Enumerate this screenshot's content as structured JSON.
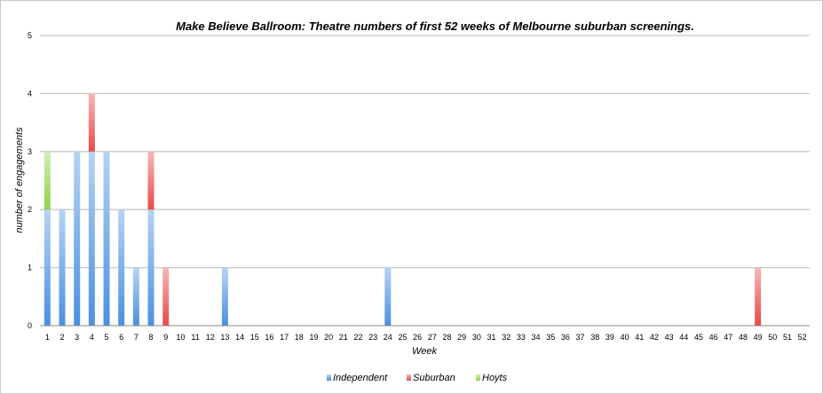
{
  "chart_data": {
    "type": "bar",
    "stacked": true,
    "title": "Make Believe Ballroom: Theatre numbers of first 52 weeks of Melbourne suburban screenings.",
    "xlabel": "Week",
    "ylabel": "number of engagements",
    "ylim": [
      0,
      5
    ],
    "yticks": [
      0,
      1,
      2,
      3,
      4,
      5
    ],
    "grid": true,
    "legend_position": "bottom",
    "categories": [
      "1",
      "2",
      "3",
      "4",
      "5",
      "6",
      "7",
      "8",
      "9",
      "10",
      "11",
      "12",
      "13",
      "14",
      "15",
      "16",
      "17",
      "18",
      "19",
      "20",
      "21",
      "22",
      "23",
      "24",
      "25",
      "26",
      "27",
      "28",
      "29",
      "30",
      "31",
      "32",
      "33",
      "34",
      "35",
      "36",
      "37",
      "38",
      "39",
      "40",
      "41",
      "42",
      "43",
      "44",
      "45",
      "46",
      "47",
      "48",
      "49",
      "50",
      "51",
      "52"
    ],
    "series": [
      {
        "name": "Independent",
        "color": "#4a90e2",
        "values": [
          2,
          2,
          3,
          3,
          3,
          2,
          1,
          2,
          0,
          0,
          0,
          0,
          1,
          0,
          0,
          0,
          0,
          0,
          0,
          0,
          0,
          0,
          0,
          1,
          0,
          0,
          0,
          0,
          0,
          0,
          0,
          0,
          0,
          0,
          0,
          0,
          0,
          0,
          0,
          0,
          0,
          0,
          0,
          0,
          0,
          0,
          0,
          0,
          0,
          0,
          0,
          0
        ]
      },
      {
        "name": "Suburban",
        "color": "#e84a4a",
        "values": [
          0,
          0,
          0,
          1,
          0,
          0,
          0,
          1,
          1,
          0,
          0,
          0,
          0,
          0,
          0,
          0,
          0,
          0,
          0,
          0,
          0,
          0,
          0,
          0,
          0,
          0,
          0,
          0,
          0,
          0,
          0,
          0,
          0,
          0,
          0,
          0,
          0,
          0,
          0,
          0,
          0,
          0,
          0,
          0,
          0,
          0,
          0,
          0,
          1,
          0,
          0,
          0
        ]
      },
      {
        "name": "Hoyts",
        "color": "#8ed44a",
        "values": [
          1,
          0,
          0,
          0,
          0,
          0,
          0,
          0,
          0,
          0,
          0,
          0,
          0,
          0,
          0,
          0,
          0,
          0,
          0,
          0,
          0,
          0,
          0,
          0,
          0,
          0,
          0,
          0,
          0,
          0,
          0,
          0,
          0,
          0,
          0,
          0,
          0,
          0,
          0,
          0,
          0,
          0,
          0,
          0,
          0,
          0,
          0,
          0,
          0,
          0,
          0,
          0
        ]
      }
    ]
  }
}
